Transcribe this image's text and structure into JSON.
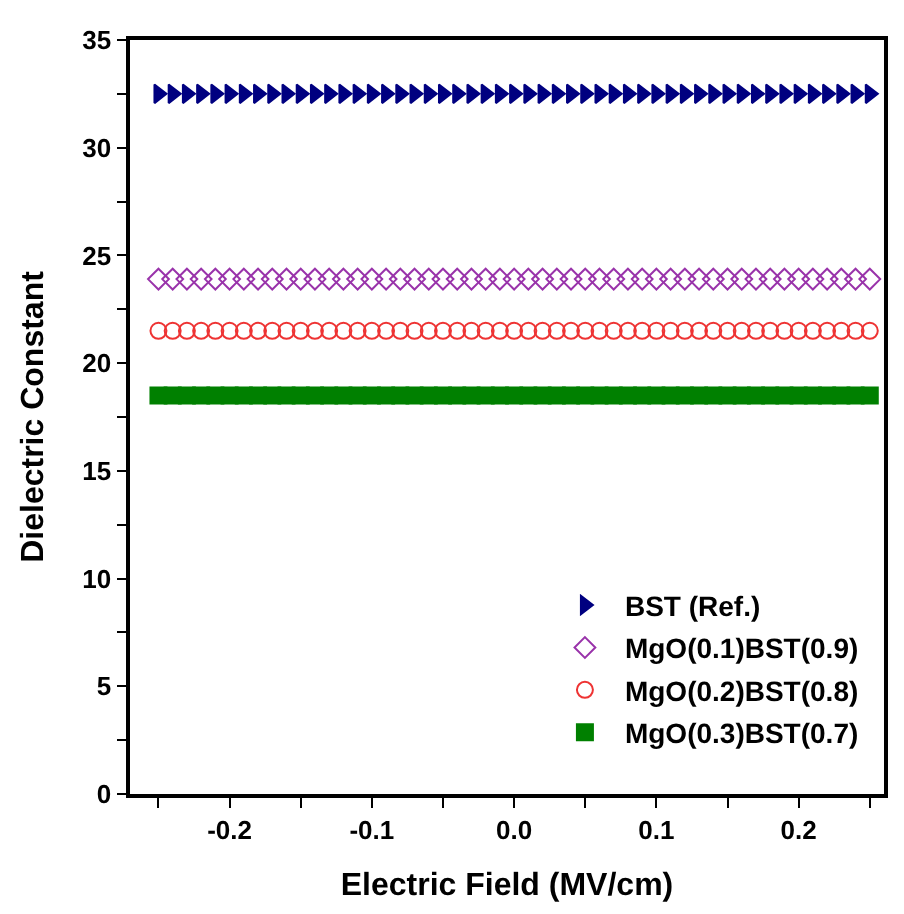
{
  "chart_data": {
    "type": "scatter",
    "xlabel": "Electric Field (MV/cm)",
    "ylabel": "Dielectric Constant",
    "x": [
      -0.25,
      -0.24,
      -0.23,
      -0.22,
      -0.21,
      -0.2,
      -0.19,
      -0.18,
      -0.17,
      -0.16,
      -0.15,
      -0.14,
      -0.13,
      -0.12,
      -0.11,
      -0.1,
      -0.09,
      -0.08,
      -0.07,
      -0.06,
      -0.05,
      -0.04,
      -0.03,
      -0.02,
      -0.01,
      0.0,
      0.01,
      0.02,
      0.03,
      0.04,
      0.05,
      0.06,
      0.07,
      0.08,
      0.09,
      0.1,
      0.11,
      0.12,
      0.13,
      0.14,
      0.15,
      0.16,
      0.17,
      0.18,
      0.19,
      0.2,
      0.21,
      0.22,
      0.23,
      0.24,
      0.25
    ],
    "series": [
      {
        "name": "BST (Ref.)",
        "color": "#000080",
        "marker": "triangle",
        "values": [
          32.5,
          32.5,
          32.5,
          32.5,
          32.5,
          32.5,
          32.5,
          32.5,
          32.5,
          32.5,
          32.5,
          32.5,
          32.5,
          32.5,
          32.5,
          32.5,
          32.5,
          32.5,
          32.5,
          32.5,
          32.5,
          32.5,
          32.5,
          32.5,
          32.5,
          32.5,
          32.5,
          32.5,
          32.5,
          32.5,
          32.5,
          32.5,
          32.5,
          32.5,
          32.5,
          32.5,
          32.5,
          32.5,
          32.5,
          32.5,
          32.5,
          32.5,
          32.5,
          32.5,
          32.5,
          32.5,
          32.5,
          32.5,
          32.5,
          32.5,
          32.5
        ]
      },
      {
        "name": "MgO(0.1)BST(0.9)",
        "color": "#9933aa",
        "marker": "diamond",
        "values": [
          23.9,
          23.9,
          23.9,
          23.9,
          23.9,
          23.9,
          23.9,
          23.9,
          23.9,
          23.9,
          23.9,
          23.9,
          23.9,
          23.9,
          23.9,
          23.9,
          23.9,
          23.9,
          23.9,
          23.9,
          23.9,
          23.9,
          23.9,
          23.9,
          23.9,
          23.9,
          23.9,
          23.9,
          23.9,
          23.9,
          23.9,
          23.9,
          23.9,
          23.9,
          23.9,
          23.9,
          23.9,
          23.9,
          23.9,
          23.9,
          23.9,
          23.9,
          23.9,
          23.9,
          23.9,
          23.9,
          23.9,
          23.9,
          23.9,
          23.9,
          23.9
        ]
      },
      {
        "name": "MgO(0.2)BST(0.8)",
        "color": "#ee3333",
        "marker": "circle",
        "values": [
          21.5,
          21.5,
          21.5,
          21.5,
          21.5,
          21.5,
          21.5,
          21.5,
          21.5,
          21.5,
          21.5,
          21.5,
          21.5,
          21.5,
          21.5,
          21.5,
          21.5,
          21.5,
          21.5,
          21.5,
          21.5,
          21.5,
          21.5,
          21.5,
          21.5,
          21.5,
          21.5,
          21.5,
          21.5,
          21.5,
          21.5,
          21.5,
          21.5,
          21.5,
          21.5,
          21.5,
          21.5,
          21.5,
          21.5,
          21.5,
          21.5,
          21.5,
          21.5,
          21.5,
          21.5,
          21.5,
          21.5,
          21.5,
          21.5,
          21.5,
          21.5
        ]
      },
      {
        "name": "MgO(0.3)BST(0.7)",
        "color": "#008000",
        "marker": "square",
        "values": [
          18.5,
          18.5,
          18.5,
          18.5,
          18.5,
          18.5,
          18.5,
          18.5,
          18.5,
          18.5,
          18.5,
          18.5,
          18.5,
          18.5,
          18.5,
          18.5,
          18.5,
          18.5,
          18.5,
          18.5,
          18.5,
          18.5,
          18.5,
          18.5,
          18.5,
          18.5,
          18.5,
          18.5,
          18.5,
          18.5,
          18.5,
          18.5,
          18.5,
          18.5,
          18.5,
          18.5,
          18.5,
          18.5,
          18.5,
          18.5,
          18.5,
          18.5,
          18.5,
          18.5,
          18.5,
          18.5,
          18.5,
          18.5,
          18.5,
          18.5,
          18.5
        ]
      }
    ],
    "xlim": [
      -0.27,
      0.26
    ],
    "xticks": [
      {
        "value": -0.25,
        "label": null
      },
      {
        "value": -0.2,
        "label": "-0.2"
      },
      {
        "value": -0.15,
        "label": null
      },
      {
        "value": -0.1,
        "label": "-0.1"
      },
      {
        "value": -0.05,
        "label": null
      },
      {
        "value": 0,
        "label": "0.0"
      },
      {
        "value": 0.05,
        "label": null
      },
      {
        "value": 0.1,
        "label": "0.1"
      },
      {
        "value": 0.15,
        "label": null
      },
      {
        "value": 0.2,
        "label": "0.2"
      },
      {
        "value": 0.25,
        "label": null
      }
    ],
    "ylim": [
      0,
      35
    ],
    "yticks": [
      0,
      {
        "value": 2.5,
        "label": null
      },
      5,
      {
        "value": 7.5,
        "label": null
      },
      10,
      {
        "value": 12.5,
        "label": null
      },
      15,
      {
        "value": 17.5,
        "label": null
      },
      20,
      {
        "value": 22.5,
        "label": null
      },
      25,
      {
        "value": 27.5,
        "label": null
      },
      30,
      {
        "value": 32.5,
        "label": null
      },
      35
    ],
    "legend": "bottom right"
  }
}
